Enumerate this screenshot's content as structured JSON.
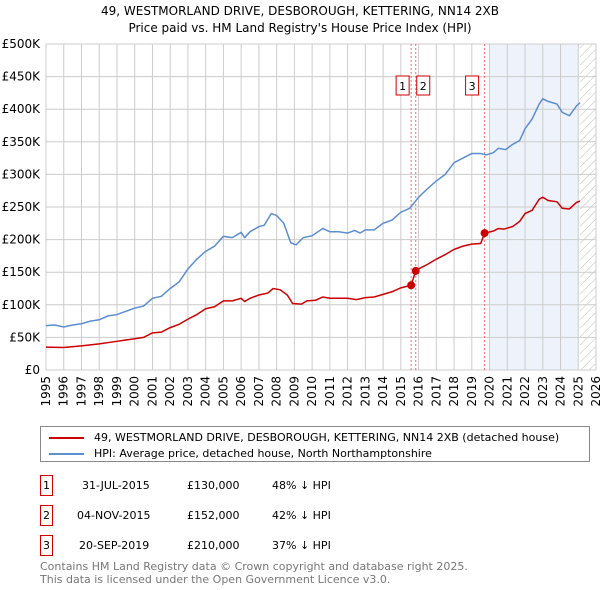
{
  "chart_data": {
    "type": "line",
    "title": "49, WESTMORLAND DRIVE, DESBOROUGH, KETTERING, NN14 2XB",
    "subtitle": "Price paid vs. HM Land Registry's House Price Index (HPI)",
    "xlim": [
      1995,
      2026
    ],
    "ylim": [
      0,
      500000
    ],
    "y_ticks": [
      {
        "v": 0,
        "label": "£0"
      },
      {
        "v": 50000,
        "label": "£50K"
      },
      {
        "v": 100000,
        "label": "£100K"
      },
      {
        "v": 150000,
        "label": "£150K"
      },
      {
        "v": 200000,
        "label": "£200K"
      },
      {
        "v": 250000,
        "label": "£250K"
      },
      {
        "v": 300000,
        "label": "£300K"
      },
      {
        "v": 350000,
        "label": "£350K"
      },
      {
        "v": 400000,
        "label": "£400K"
      },
      {
        "v": 450000,
        "label": "£450K"
      },
      {
        "v": 500000,
        "label": "£500K"
      }
    ],
    "x_ticks": [
      "1995",
      "1996",
      "1997",
      "1998",
      "1999",
      "2000",
      "2001",
      "2002",
      "2003",
      "2004",
      "2005",
      "2006",
      "2007",
      "2008",
      "2009",
      "2010",
      "2011",
      "2012",
      "2013",
      "2014",
      "2015",
      "2016",
      "2017",
      "2018",
      "2019",
      "2020",
      "2021",
      "2022",
      "2023",
      "2024",
      "2025",
      "2026"
    ],
    "grid": true,
    "shaded_range": [
      2020.0,
      2025.0
    ],
    "hatched_range": [
      2025.1,
      2026
    ],
    "series": [
      {
        "name": "49, WESTMORLAND DRIVE, DESBOROUGH, KETTERING, NN14 2XB (detached house)",
        "color": "#cc0000",
        "points": [
          [
            1995,
            35
          ],
          [
            1996,
            34.5
          ],
          [
            1997,
            37
          ],
          [
            1998,
            40
          ],
          [
            1999,
            44
          ],
          [
            2000,
            48
          ],
          [
            2000.5,
            50
          ],
          [
            2001,
            57
          ],
          [
            2001.5,
            58
          ],
          [
            2002,
            65
          ],
          [
            2002.5,
            70
          ],
          [
            2003,
            78
          ],
          [
            2003.5,
            85
          ],
          [
            2004,
            94
          ],
          [
            2004.5,
            97
          ],
          [
            2005,
            106
          ],
          [
            2005.5,
            106
          ],
          [
            2006,
            110
          ],
          [
            2006.2,
            105
          ],
          [
            2006.5,
            110
          ],
          [
            2007,
            115
          ],
          [
            2007.5,
            118
          ],
          [
            2007.8,
            125
          ],
          [
            2008.2,
            123
          ],
          [
            2008.6,
            115
          ],
          [
            2008.9,
            102
          ],
          [
            2009.4,
            101
          ],
          [
            2009.7,
            106
          ],
          [
            2010.2,
            107
          ],
          [
            2010.6,
            112
          ],
          [
            2011,
            110
          ],
          [
            2011.5,
            110
          ],
          [
            2012,
            110
          ],
          [
            2012.5,
            108
          ],
          [
            2013,
            111
          ],
          [
            2013.5,
            112
          ],
          [
            2014,
            116
          ],
          [
            2014.5,
            120
          ],
          [
            2015,
            126
          ],
          [
            2015.58,
            130
          ],
          [
            2015.84,
            152
          ],
          [
            2016,
            155
          ],
          [
            2016.5,
            162
          ],
          [
            2017,
            170
          ],
          [
            2017.5,
            177
          ],
          [
            2018,
            185
          ],
          [
            2018.5,
            190
          ],
          [
            2019,
            193
          ],
          [
            2019.5,
            194
          ],
          [
            2019.72,
            210
          ],
          [
            2020.2,
            213
          ],
          [
            2020.5,
            217
          ],
          [
            2020.8,
            216
          ],
          [
            2021.3,
            220
          ],
          [
            2021.7,
            228
          ],
          [
            2022,
            240
          ],
          [
            2022.4,
            245
          ],
          [
            2022.8,
            262
          ],
          [
            2023,
            265
          ],
          [
            2023.3,
            260
          ],
          [
            2023.8,
            258
          ],
          [
            2024.1,
            248
          ],
          [
            2024.5,
            247
          ],
          [
            2024.9,
            257
          ],
          [
            2025.1,
            259
          ]
        ]
      },
      {
        "name": "HPI: Average price, detached house, North Northamptonshire",
        "color": "#5b8dd0",
        "points": [
          [
            1995,
            68
          ],
          [
            1995.5,
            69
          ],
          [
            1996,
            66
          ],
          [
            1996.5,
            69
          ],
          [
            1997,
            71
          ],
          [
            1997.5,
            75
          ],
          [
            1998,
            77
          ],
          [
            1998.5,
            83
          ],
          [
            1999,
            85
          ],
          [
            1999.5,
            90
          ],
          [
            2000,
            95
          ],
          [
            2000.5,
            98
          ],
          [
            2001,
            110
          ],
          [
            2001.5,
            113
          ],
          [
            2002,
            125
          ],
          [
            2002.5,
            135
          ],
          [
            2003,
            155
          ],
          [
            2003.5,
            170
          ],
          [
            2004,
            182
          ],
          [
            2004.5,
            190
          ],
          [
            2005,
            205
          ],
          [
            2005.5,
            203
          ],
          [
            2006,
            211
          ],
          [
            2006.2,
            203
          ],
          [
            2006.5,
            212
          ],
          [
            2007,
            220
          ],
          [
            2007.3,
            222
          ],
          [
            2007.7,
            240
          ],
          [
            2008,
            237
          ],
          [
            2008.4,
            225
          ],
          [
            2008.8,
            195
          ],
          [
            2009.1,
            192
          ],
          [
            2009.5,
            203
          ],
          [
            2010,
            206
          ],
          [
            2010.6,
            217
          ],
          [
            2011,
            212
          ],
          [
            2011.5,
            212
          ],
          [
            2012,
            210
          ],
          [
            2012.4,
            214
          ],
          [
            2012.7,
            210
          ],
          [
            2013,
            215
          ],
          [
            2013.5,
            215
          ],
          [
            2014,
            225
          ],
          [
            2014.5,
            230
          ],
          [
            2015,
            242
          ],
          [
            2015.5,
            248
          ],
          [
            2016,
            265
          ],
          [
            2016.5,
            278
          ],
          [
            2017,
            290
          ],
          [
            2017.5,
            300
          ],
          [
            2018,
            318
          ],
          [
            2018.5,
            325
          ],
          [
            2019,
            332
          ],
          [
            2019.5,
            332
          ],
          [
            2019.8,
            330
          ],
          [
            2020.2,
            333
          ],
          [
            2020.5,
            340
          ],
          [
            2020.9,
            338
          ],
          [
            2021.3,
            346
          ],
          [
            2021.7,
            352
          ],
          [
            2022,
            370
          ],
          [
            2022.4,
            385
          ],
          [
            2022.8,
            408
          ],
          [
            2023,
            416
          ],
          [
            2023.3,
            412
          ],
          [
            2023.8,
            408
          ],
          [
            2024.1,
            395
          ],
          [
            2024.5,
            390
          ],
          [
            2024.9,
            405
          ],
          [
            2025.1,
            410
          ]
        ]
      }
    ],
    "sales": [
      {
        "id": "1",
        "x": 2015.58,
        "price": 130000,
        "date": "31-JUL-2015",
        "price_label": "£130,000",
        "hpi": "48% ↓ HPI"
      },
      {
        "id": "2",
        "x": 2015.84,
        "price": 152000,
        "date": "04-NOV-2015",
        "price_label": "£152,000",
        "hpi": "42% ↓ HPI"
      },
      {
        "id": "3",
        "x": 2019.72,
        "price": 210000,
        "date": "20-SEP-2019",
        "price_label": "£210,000",
        "hpi": "37% ↓ HPI"
      }
    ]
  },
  "footer": {
    "line1": "Contains HM Land Registry data © Crown copyright and database right 2025.",
    "line2": "This data is licensed under the Open Government Licence v3.0."
  }
}
